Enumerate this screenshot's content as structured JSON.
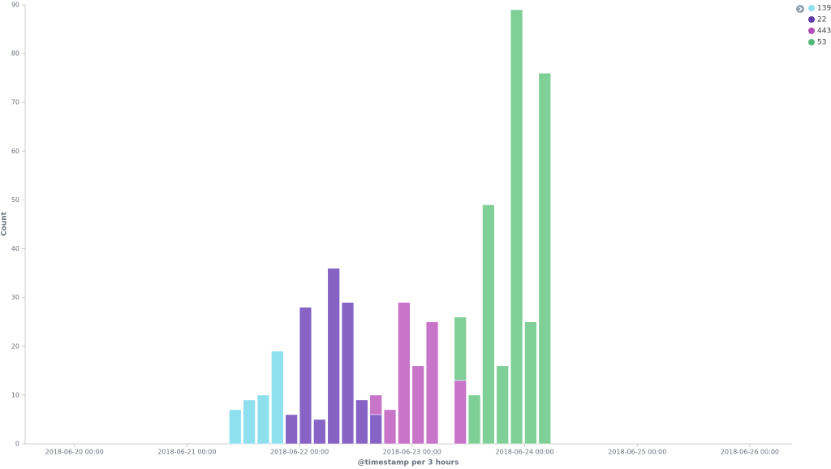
{
  "chart_data": {
    "type": "bar",
    "stacked": true,
    "x_label": "@timestamp per 3 hours",
    "y_label": "Count",
    "x": [
      "2018-06-21 09:00",
      "2018-06-21 12:00",
      "2018-06-21 15:00",
      "2018-06-21 18:00",
      "2018-06-21 21:00",
      "2018-06-22 00:00",
      "2018-06-22 03:00",
      "2018-06-22 06:00",
      "2018-06-22 09:00",
      "2018-06-22 12:00",
      "2018-06-22 15:00",
      "2018-06-22 18:00",
      "2018-06-22 21:00",
      "2018-06-23 00:00",
      "2018-06-23 03:00",
      "2018-06-23 09:00",
      "2018-06-23 12:00",
      "2018-06-23 15:00",
      "2018-06-23 18:00",
      "2018-06-23 21:00",
      "2018-06-24 00:00",
      "2018-06-24 03:00"
    ],
    "bin_hours": 3,
    "series": [
      {
        "name": "139",
        "color": "#8fe0ef",
        "values": [
          7,
          9,
          10,
          19,
          null,
          null,
          null,
          null,
          null,
          null,
          null,
          null,
          null,
          null,
          null,
          null,
          null,
          null,
          null,
          null,
          null,
          null
        ]
      },
      {
        "name": "22",
        "color": "#8763c6",
        "legend_color": "#5f3aa9",
        "values": [
          null,
          null,
          null,
          null,
          6,
          28,
          5,
          36,
          29,
          9,
          6,
          null,
          null,
          null,
          null,
          null,
          null,
          null,
          null,
          null,
          null,
          null
        ]
      },
      {
        "name": "443",
        "color": "#c874c9",
        "legend_color": "#b34bb8",
        "values": [
          null,
          null,
          null,
          null,
          null,
          null,
          null,
          null,
          null,
          null,
          4,
          7,
          29,
          16,
          25,
          13,
          null,
          null,
          null,
          null,
          null,
          null
        ]
      },
      {
        "name": "53",
        "color": "#7fcf97",
        "legend_color": "#54b87a",
        "values": [
          null,
          null,
          null,
          null,
          null,
          null,
          null,
          null,
          null,
          null,
          null,
          null,
          null,
          null,
          null,
          13,
          10,
          49,
          16,
          89,
          25,
          76
        ]
      }
    ],
    "xlim": [
      "2018-06-19 13:30",
      "2018-06-26 09:00"
    ],
    "xticks": [
      "2018-06-20 00:00",
      "2018-06-21 00:00",
      "2018-06-22 00:00",
      "2018-06-23 00:00",
      "2018-06-24 00:00",
      "2018-06-25 00:00",
      "2018-06-26 00:00"
    ],
    "ylim": [
      0,
      90
    ],
    "yticks": [
      0,
      10,
      20,
      30,
      40,
      50,
      60,
      70,
      80,
      90
    ],
    "grid": false,
    "legend": "top-right"
  }
}
